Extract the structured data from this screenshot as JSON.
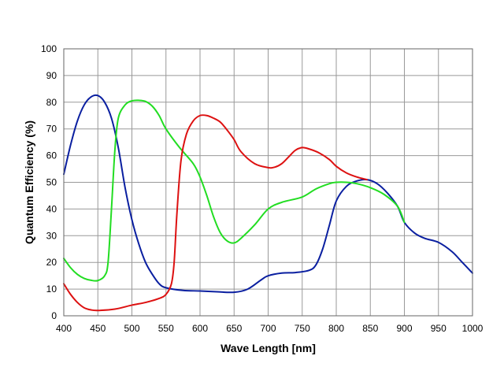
{
  "chart_data": {
    "type": "line",
    "xlabel": "Wave Length [nm]",
    "ylabel": "Quantum Efficiency (%)",
    "xlim": [
      400,
      1000
    ],
    "ylim": [
      0,
      100
    ],
    "x_ticks": [
      "400",
      "450",
      "500",
      "550",
      "600",
      "650",
      "700",
      "750",
      "800",
      "850",
      "900",
      "950",
      "1000"
    ],
    "y_ticks": [
      "0",
      "10",
      "20",
      "30",
      "40",
      "50",
      "60",
      "70",
      "80",
      "90",
      "100"
    ],
    "grid": true,
    "legend": "none",
    "series": [
      {
        "color": "#0a1fa0",
        "points": [
          [
            400,
            53
          ],
          [
            410,
            64
          ],
          [
            420,
            73
          ],
          [
            430,
            79
          ],
          [
            440,
            82
          ],
          [
            450,
            82.5
          ],
          [
            460,
            80
          ],
          [
            470,
            74
          ],
          [
            480,
            63
          ],
          [
            490,
            48
          ],
          [
            500,
            36
          ],
          [
            510,
            27
          ],
          [
            520,
            20
          ],
          [
            530,
            15.5
          ],
          [
            540,
            12
          ],
          [
            550,
            10.5
          ],
          [
            575,
            9.5
          ],
          [
            600,
            9.3
          ],
          [
            625,
            9
          ],
          [
            650,
            8.8
          ],
          [
            670,
            10
          ],
          [
            690,
            13.5
          ],
          [
            700,
            15
          ],
          [
            720,
            16
          ],
          [
            740,
            16.2
          ],
          [
            760,
            17
          ],
          [
            770,
            19
          ],
          [
            780,
            25
          ],
          [
            790,
            34
          ],
          [
            800,
            43
          ],
          [
            815,
            48.5
          ],
          [
            830,
            50.5
          ],
          [
            845,
            51
          ],
          [
            860,
            49.5
          ],
          [
            875,
            46
          ],
          [
            890,
            41
          ],
          [
            900,
            35
          ],
          [
            915,
            31
          ],
          [
            930,
            29
          ],
          [
            950,
            27.5
          ],
          [
            970,
            24
          ],
          [
            985,
            20
          ],
          [
            1000,
            16
          ]
        ]
      },
      {
        "color": "#22dd22",
        "points": [
          [
            400,
            21.5
          ],
          [
            410,
            18
          ],
          [
            420,
            15.5
          ],
          [
            430,
            14
          ],
          [
            440,
            13.3
          ],
          [
            450,
            13.2
          ],
          [
            460,
            15
          ],
          [
            465,
            20
          ],
          [
            470,
            40
          ],
          [
            475,
            62
          ],
          [
            480,
            74
          ],
          [
            490,
            79
          ],
          [
            500,
            80.5
          ],
          [
            510,
            80.7
          ],
          [
            520,
            80.3
          ],
          [
            530,
            78.5
          ],
          [
            540,
            75
          ],
          [
            550,
            70
          ],
          [
            570,
            63
          ],
          [
            590,
            57
          ],
          [
            600,
            52
          ],
          [
            610,
            45
          ],
          [
            620,
            37
          ],
          [
            630,
            31
          ],
          [
            640,
            28
          ],
          [
            650,
            27.3
          ],
          [
            660,
            29
          ],
          [
            680,
            34
          ],
          [
            700,
            40
          ],
          [
            720,
            42.5
          ],
          [
            750,
            44.5
          ],
          [
            770,
            47.5
          ],
          [
            790,
            49.5
          ],
          [
            800,
            50
          ],
          [
            815,
            50
          ],
          [
            830,
            49.5
          ],
          [
            850,
            48
          ],
          [
            870,
            45.5
          ],
          [
            890,
            41
          ],
          [
            900,
            35
          ]
        ]
      },
      {
        "color": "#dd1111",
        "points": [
          [
            400,
            12
          ],
          [
            410,
            8
          ],
          [
            420,
            5
          ],
          [
            430,
            3
          ],
          [
            440,
            2.2
          ],
          [
            450,
            2
          ],
          [
            475,
            2.5
          ],
          [
            500,
            4
          ],
          [
            520,
            5
          ],
          [
            540,
            6.5
          ],
          [
            550,
            8
          ],
          [
            558,
            12
          ],
          [
            562,
            20
          ],
          [
            566,
            38
          ],
          [
            572,
            58
          ],
          [
            580,
            68
          ],
          [
            590,
            73
          ],
          [
            600,
            75
          ],
          [
            610,
            75
          ],
          [
            620,
            74
          ],
          [
            630,
            72.5
          ],
          [
            640,
            69.5
          ],
          [
            650,
            66
          ],
          [
            660,
            61.5
          ],
          [
            680,
            57
          ],
          [
            700,
            55.5
          ],
          [
            710,
            55.7
          ],
          [
            720,
            57
          ],
          [
            730,
            59.5
          ],
          [
            740,
            62
          ],
          [
            750,
            63
          ],
          [
            760,
            62.5
          ],
          [
            775,
            61
          ],
          [
            790,
            58.5
          ],
          [
            800,
            56
          ],
          [
            815,
            53.5
          ],
          [
            830,
            52
          ],
          [
            845,
            51
          ]
        ]
      }
    ]
  }
}
